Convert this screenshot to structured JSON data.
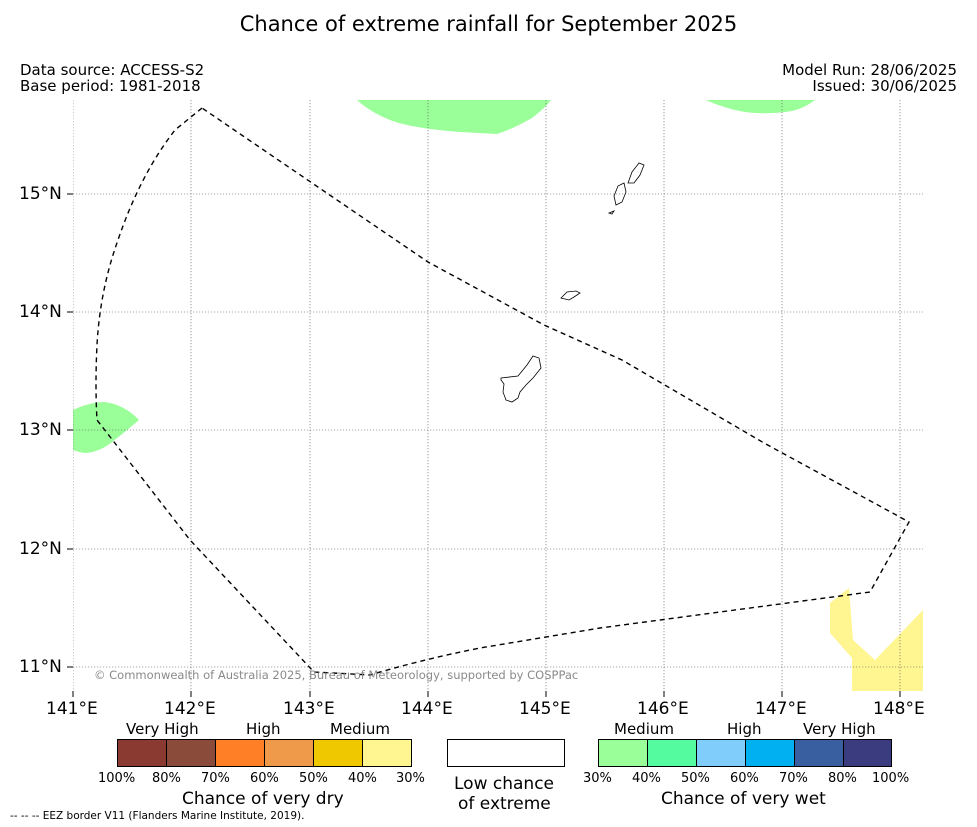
{
  "title": "Chance of extreme rainfall for September 2025",
  "meta": {
    "data_source": "Data source: ACCESS-S2",
    "base_period": "Base period: 1981-2018",
    "model_run": "Model Run: 28/06/2025",
    "issued": "Issued: 30/06/2025"
  },
  "axes": {
    "x_ticks": [
      "141°E",
      "142°E",
      "143°E",
      "144°E",
      "145°E",
      "146°E",
      "147°E",
      "148°E"
    ],
    "y_ticks": [
      "15°N",
      "14°N",
      "13°N",
      "12°N",
      "11°N"
    ]
  },
  "copyright": "© Commonwealth of Australia 2025, Bureau of Meteorology, supported by COSPPac",
  "legend": {
    "dry": {
      "headers": [
        "Very High",
        "High",
        "Medium"
      ],
      "colors": [
        "#8b3a32",
        "#8a4b3a",
        "#ff7f27",
        "#ee9a4a",
        "#f0c800",
        "#fff591"
      ],
      "percents": [
        "100%",
        "80%",
        "70%",
        "60%",
        "50%",
        "40%",
        "30%"
      ],
      "title": "Chance of very dry"
    },
    "low": {
      "color": "#ffffff",
      "line1": "Low chance",
      "line2": "of extreme"
    },
    "wet": {
      "headers": [
        "Medium",
        "High",
        "Very High"
      ],
      "colors": [
        "#9aff99",
        "#55fc9f",
        "#80cdfc",
        "#00b0f0",
        "#3a5fa0",
        "#3b3b80"
      ],
      "percents": [
        "30%",
        "40%",
        "50%",
        "60%",
        "70%",
        "80%",
        "100%"
      ],
      "title": "Chance of very wet"
    }
  },
  "footnote": "--  --  -- EEZ border V11 (Flanders Marine Institute, 2019).",
  "colors": {
    "medium_wet": "#9aff99",
    "medium_dry": "#fff591",
    "eez_line": "#000000",
    "grid": "#555555"
  }
}
